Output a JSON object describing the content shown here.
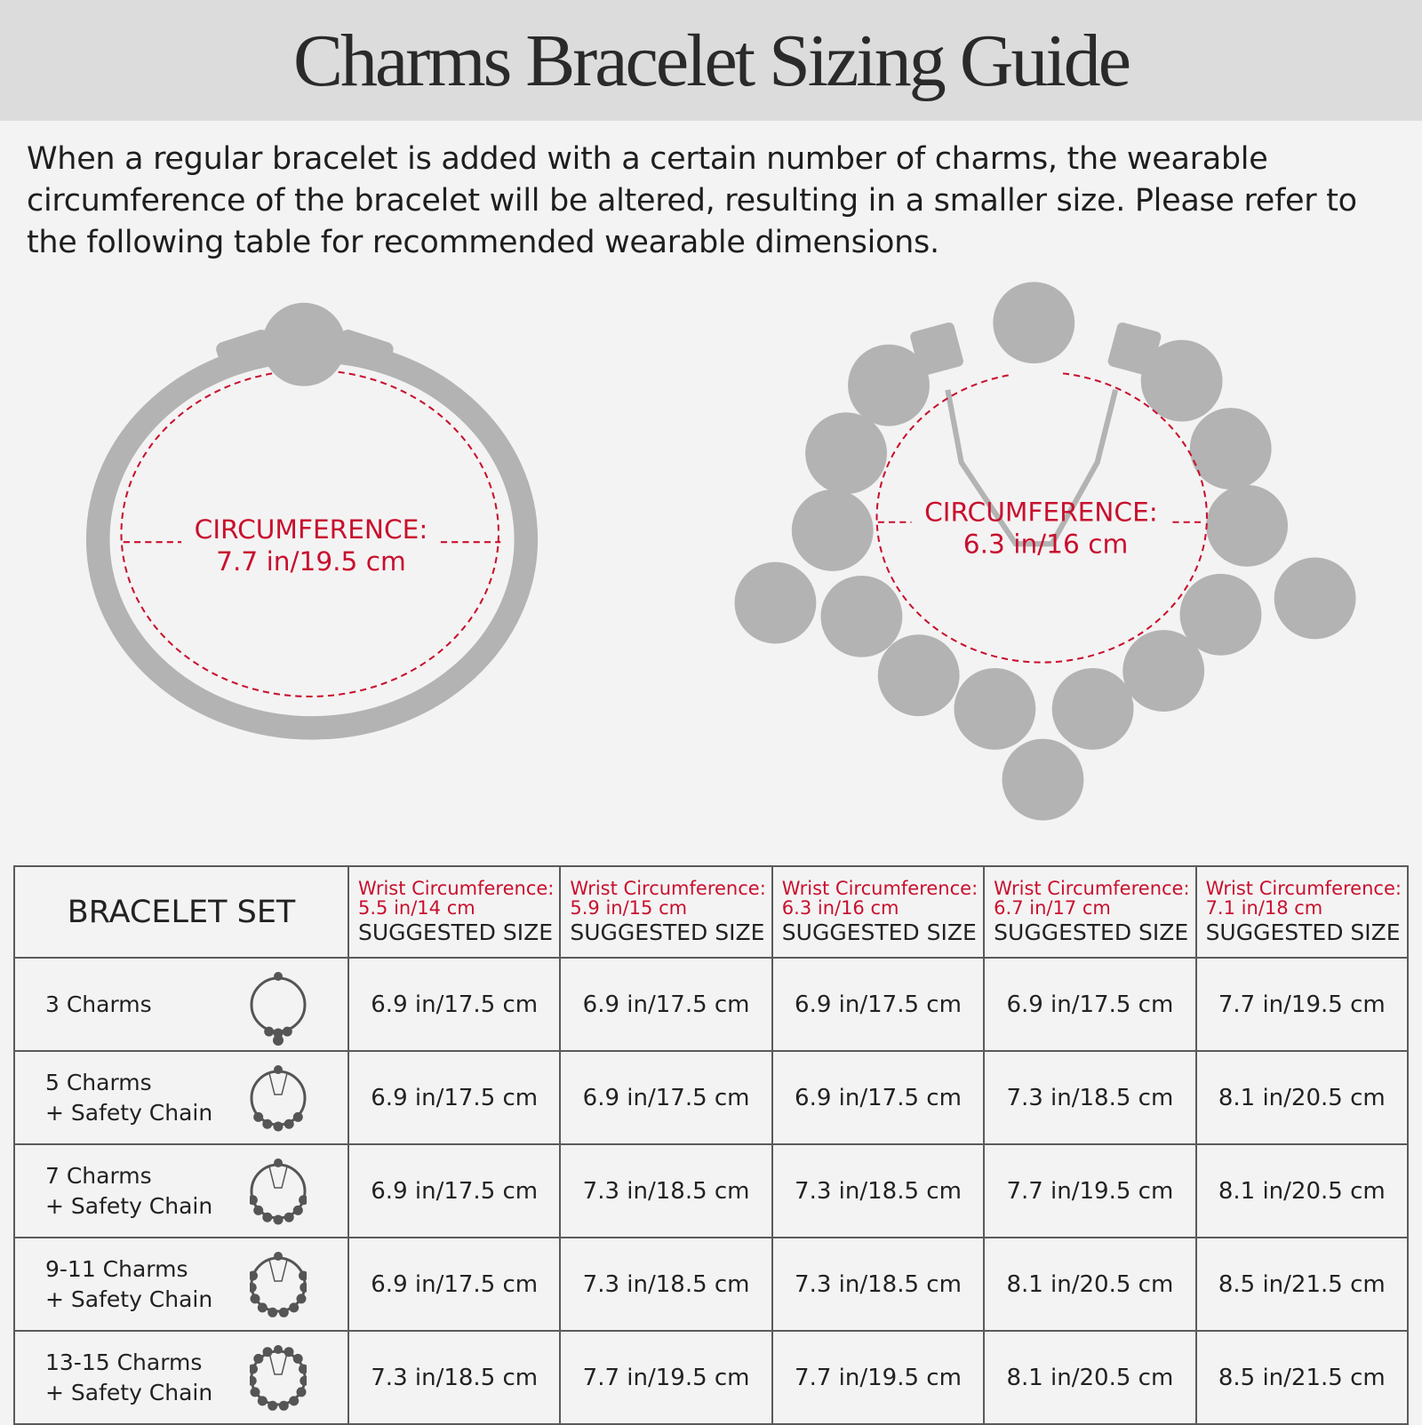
{
  "title": "Charms Bracelet Sizing Guide",
  "intro": "When a regular bracelet is added with a certain number of charms, the wearable circumference of the bracelet will be altered, resulting in a smaller size. Please refer to the following table for recommended wearable dimensions.",
  "illustrations": {
    "plain": {
      "label": "CIRCUMFERENCE:",
      "value": "7.7 in/19.5 cm"
    },
    "charmed": {
      "label": "CIRCUMFERENCE:",
      "value": "6.3 in/16 cm"
    }
  },
  "colors": {
    "accent": "#c8102e",
    "header_bg": "#dcdcdc",
    "bracelet_gray": "#b3b3b3"
  },
  "table": {
    "set_header": "BRACELET SET",
    "columns": [
      {
        "wrist": "Wrist Circumference:",
        "size": "5.5 in/14 cm",
        "suggested": "SUGGESTED SIZE"
      },
      {
        "wrist": "Wrist Circumference:",
        "size": "5.9 in/15 cm",
        "suggested": "SUGGESTED SIZE"
      },
      {
        "wrist": "Wrist Circumference:",
        "size": "6.3 in/16 cm",
        "suggested": "SUGGESTED SIZE"
      },
      {
        "wrist": "Wrist Circumference:",
        "size": "6.7 in/17 cm",
        "suggested": "SUGGESTED SIZE"
      },
      {
        "wrist": "Wrist Circumference:",
        "size": "7.1 in/18 cm",
        "suggested": "SUGGESTED SIZE"
      }
    ],
    "rows": [
      {
        "name": "3 Charms",
        "sub": "",
        "icon": "bracelet-3-charms-icon",
        "values": [
          "6.9 in/17.5 cm",
          "6.9 in/17.5 cm",
          "6.9 in/17.5 cm",
          "6.9 in/17.5 cm",
          "7.7 in/19.5 cm"
        ]
      },
      {
        "name": "5 Charms",
        "sub": "+ Safety Chain",
        "icon": "bracelet-5-charms-icon",
        "values": [
          "6.9 in/17.5 cm",
          "6.9 in/17.5 cm",
          "6.9 in/17.5 cm",
          "7.3 in/18.5 cm",
          "8.1 in/20.5 cm"
        ]
      },
      {
        "name": "7 Charms",
        "sub": "+ Safety Chain",
        "icon": "bracelet-7-charms-icon",
        "values": [
          "6.9 in/17.5 cm",
          "7.3 in/18.5 cm",
          "7.3 in/18.5 cm",
          "7.7 in/19.5 cm",
          "8.1 in/20.5 cm"
        ]
      },
      {
        "name": "9-11 Charms",
        "sub": "+ Safety Chain",
        "icon": "bracelet-9-11-charms-icon",
        "values": [
          "6.9 in/17.5 cm",
          "7.3 in/18.5 cm",
          "7.3 in/18.5 cm",
          "8.1 in/20.5 cm",
          "8.5 in/21.5 cm"
        ]
      },
      {
        "name": "13-15 Charms",
        "sub": "+ Safety Chain",
        "icon": "bracelet-13-15-charms-icon",
        "values": [
          "7.3 in/18.5 cm",
          "7.7 in/19.5 cm",
          "7.7 in/19.5 cm",
          "8.1 in/20.5 cm",
          "8.5 in/21.5 cm"
        ]
      }
    ]
  }
}
